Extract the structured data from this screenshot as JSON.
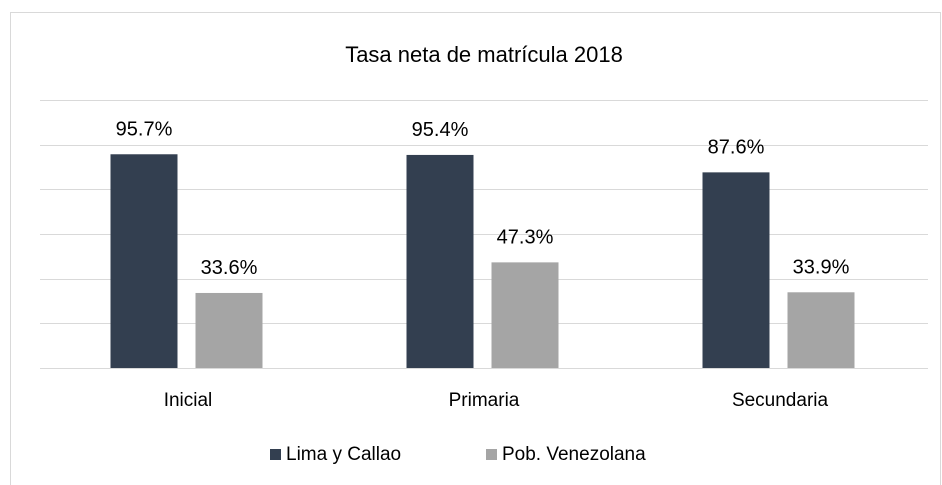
{
  "chart_data": {
    "type": "bar",
    "title": "Tasa neta de matrícula 2018",
    "categories": [
      "Inicial",
      "Primaria",
      "Secundaria"
    ],
    "series": [
      {
        "name": "Lima y Callao",
        "color": "#333f50",
        "values": [
          95.7,
          95.4,
          87.6
        ],
        "value_labels": [
          "95.7%",
          "95.4%",
          "87.6%"
        ]
      },
      {
        "name": "Pob. Venezolana",
        "color": "#a5a5a5",
        "values": [
          33.6,
          47.3,
          33.9
        ],
        "value_labels": [
          "33.6%",
          "47.3%",
          "33.9%"
        ]
      }
    ],
    "ylim": [
      0,
      120
    ],
    "yticks": [
      0,
      20,
      40,
      60,
      80,
      100,
      120
    ],
    "grid": true,
    "legend": "bottom"
  }
}
